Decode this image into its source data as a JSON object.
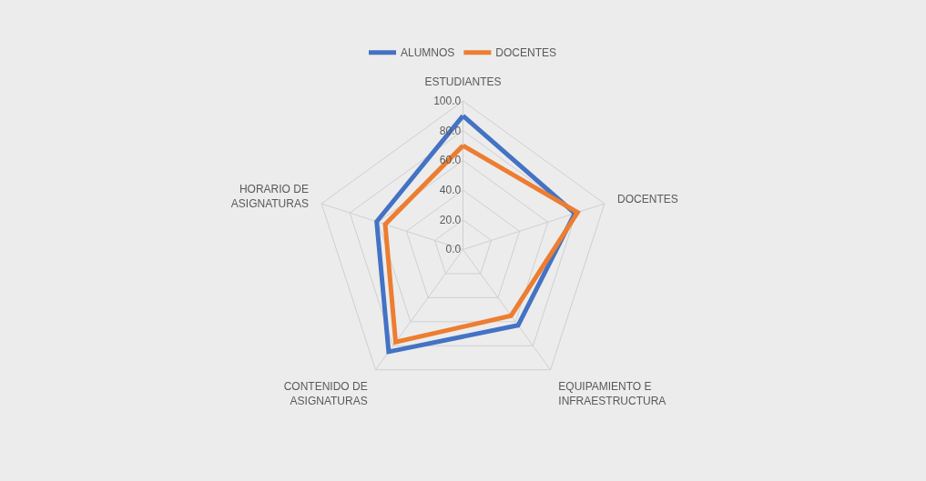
{
  "chart_data": {
    "type": "radar",
    "categories": [
      "ESTUDIANTES",
      "DOCENTES",
      "EQUIPAMIENTO E\nINFRAESTRUCTURA",
      "CONTENIDO DE\nASIGNATURAS",
      "HORARIO DE\nASIGNATURAS"
    ],
    "series": [
      {
        "name": "ALUMNOS",
        "color": "#4472c4",
        "values": [
          90,
          79,
          63,
          85,
          61
        ]
      },
      {
        "name": "DOCENTES",
        "color": "#ed7d31",
        "values": [
          70,
          81,
          55,
          77,
          55
        ]
      }
    ],
    "ylim": [
      0,
      100
    ],
    "yticks": [
      {
        "value": 0,
        "label": "0.0"
      },
      {
        "value": 20,
        "label": "20.0"
      },
      {
        "value": 40,
        "label": "40.0"
      },
      {
        "value": 60,
        "label": "60.0"
      },
      {
        "value": 80,
        "label": "80.0"
      },
      {
        "value": 100,
        "label": "100.0"
      }
    ],
    "grid": true,
    "legend": "top",
    "marker": "none",
    "line_style": "solid"
  }
}
